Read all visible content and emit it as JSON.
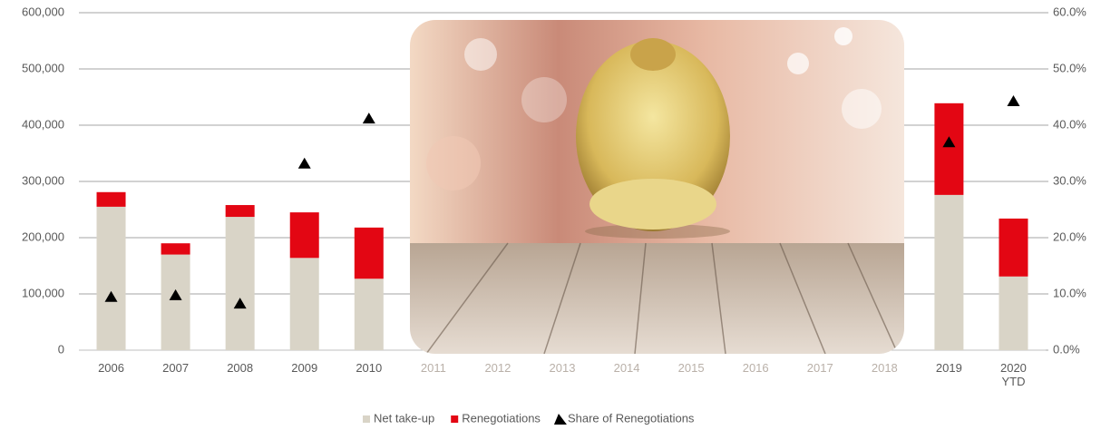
{
  "chart_data": {
    "type": "bar",
    "categories": [
      "2006",
      "2007",
      "2008",
      "2009",
      "2010",
      "2011",
      "2012",
      "2013",
      "2014",
      "2015",
      "2016",
      "2017",
      "2018",
      "2019",
      "2020 YTD"
    ],
    "series": [
      {
        "name": "Net take-up",
        "color": "#d9d4c7",
        "values": [
          255000,
          170000,
          237000,
          164000,
          127000,
          null,
          null,
          null,
          null,
          null,
          null,
          null,
          null,
          276000,
          131000
        ]
      },
      {
        "name": "Renegotiations",
        "color": "#e30613",
        "values": [
          26000,
          20000,
          21000,
          81000,
          91000,
          null,
          null,
          null,
          null,
          null,
          null,
          null,
          null,
          163000,
          103000
        ]
      },
      {
        "name": "Share of Renegotiations",
        "color": "#000000",
        "axis": "y2",
        "type": "scatter",
        "values": [
          9.4,
          9.7,
          8.2,
          33.1,
          41.1,
          null,
          null,
          null,
          null,
          null,
          null,
          null,
          null,
          36.9,
          44.2
        ]
      }
    ],
    "ylim": [
      0,
      600000
    ],
    "yticks": [
      0,
      {
        "value": 100000,
        "label": "100,000"
      },
      {
        "value": 200000,
        "label": "200,000"
      },
      {
        "value": 300000,
        "label": "300,000"
      },
      {
        "value": 400000,
        "label": "400,000"
      },
      {
        "value": 500000,
        "label": "500,000"
      },
      {
        "value": 600000,
        "label": "600,000"
      }
    ],
    "y2lim": [
      0,
      60
    ],
    "y2ticks": [
      {
        "value": 0,
        "label": "0.0%"
      },
      {
        "value": 10,
        "label": "10.0%"
      },
      {
        "value": 20,
        "label": "20.0%"
      },
      {
        "value": 30,
        "label": "30.0%"
      },
      {
        "value": 40,
        "label": "40.0%"
      },
      {
        "value": 50,
        "label": "50.0%"
      },
      {
        "value": 60,
        "label": "60.0%"
      }
    ],
    "grid": true,
    "legend": "bottom"
  }
}
